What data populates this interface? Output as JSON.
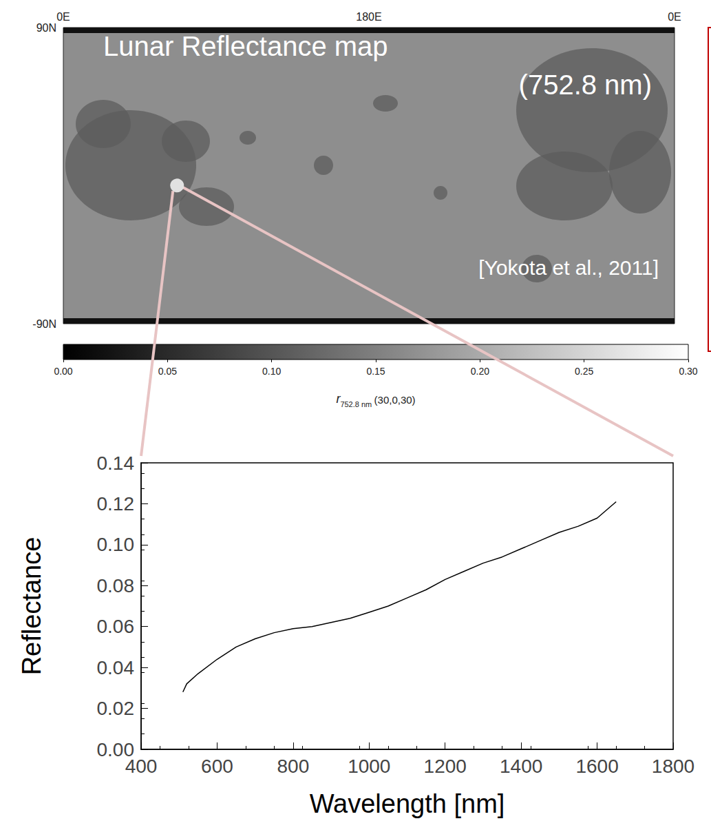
{
  "chart_data": [
    {
      "type": "map",
      "title": "Lunar Reflectance map",
      "subtitle": "(752.8 nm)",
      "annotations": [
        "[Yokota et al., 2011]"
      ],
      "x": [
        67
      ],
      "y": [
        -6
      ],
      "marker": "circle",
      "color": "#e8c4c4",
      "xlim": [
        0,
        360
      ],
      "xticks": [
        {
          "value": 0,
          "label": "0E"
        },
        {
          "value": 180,
          "label": "180E"
        },
        {
          "value": 360,
          "label": "0E"
        }
      ],
      "ylim": [
        -90,
        90
      ],
      "yticks": [
        {
          "value": -90,
          "label": "-90N"
        },
        {
          "value": 90,
          "label": "90N"
        }
      ],
      "colorbar": {
        "range": [
          0,
          0.3
        ],
        "ticks": [
          {
            "value": 0,
            "label": "0.00"
          },
          {
            "value": 0.05,
            "label": "0.05"
          },
          {
            "value": 0.1,
            "label": "0.10"
          },
          {
            "value": 0.15,
            "label": "0.15"
          },
          {
            "value": 0.2,
            "label": "0.20"
          },
          {
            "value": 0.25,
            "label": "0.25"
          },
          {
            "value": 0.3,
            "label": "0.30"
          }
        ],
        "label": {
          "symbol": "r",
          "subscript": "752.8 nm",
          "suffix": "(30,0,30)"
        }
      }
    },
    {
      "type": "line",
      "xlabel": "Wavelength [nm]",
      "ylabel": "Reflectance",
      "x": [
        510,
        520,
        550,
        600,
        650,
        700,
        750,
        800,
        850,
        900,
        950,
        1000,
        1050,
        1100,
        1150,
        1200,
        1250,
        1300,
        1350,
        1400,
        1450,
        1500,
        1550,
        1600,
        1650
      ],
      "values": [
        0.028,
        0.032,
        0.037,
        0.044,
        0.05,
        0.054,
        0.057,
        0.059,
        0.06,
        0.062,
        0.064,
        0.067,
        0.07,
        0.074,
        0.078,
        0.083,
        0.087,
        0.091,
        0.094,
        0.098,
        0.102,
        0.106,
        0.109,
        0.113,
        0.121
      ],
      "color": "#000000",
      "xlim": [
        400,
        1800
      ],
      "xticks": [
        400,
        600,
        800,
        1000,
        1200,
        1400,
        1600,
        1800
      ],
      "ylim": [
        0,
        0.14
      ],
      "yticks": [
        {
          "value": 0,
          "label": "0.00"
        },
        {
          "value": 0.02,
          "label": "0.02"
        },
        {
          "value": 0.04,
          "label": "0.04"
        },
        {
          "value": 0.06,
          "label": "0.06"
        },
        {
          "value": 0.08,
          "label": "0.08"
        },
        {
          "value": 0.1,
          "label": "0.10"
        },
        {
          "value": 0.12,
          "label": "0.12"
        },
        {
          "value": 0.14,
          "label": "0.14"
        }
      ],
      "grid": false
    }
  ]
}
